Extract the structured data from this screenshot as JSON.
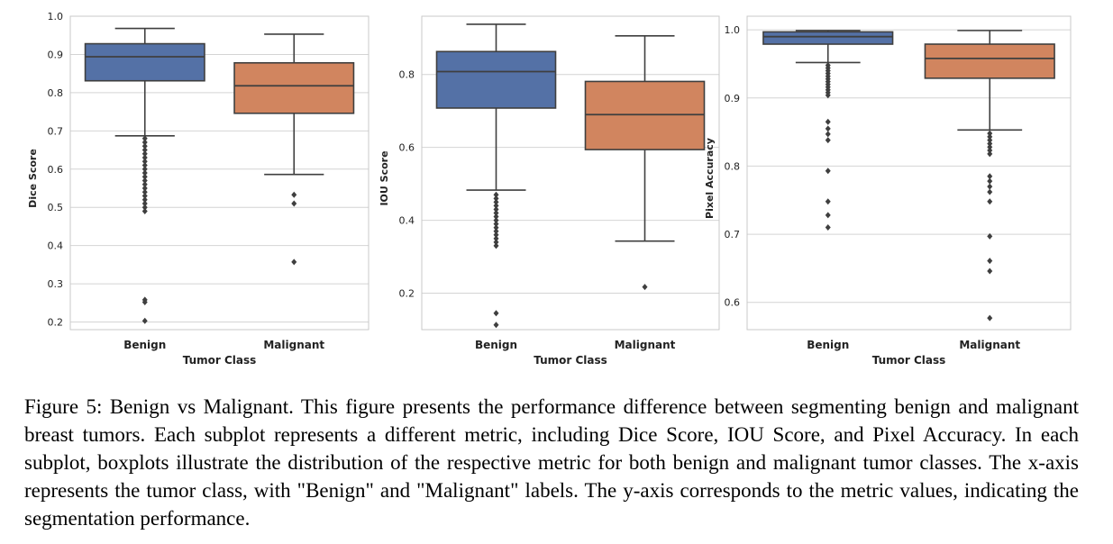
{
  "chart_data": [
    {
      "type": "box",
      "xlabel": "Tumor Class",
      "ylabel": "Dice Score",
      "ylim": [
        0.18,
        1.0
      ],
      "yticks": [
        0.2,
        0.3,
        0.4,
        0.5,
        0.6,
        0.7,
        0.8,
        0.9,
        1.0
      ],
      "yticklabels": [
        "0.2",
        "0.3",
        "0.4",
        "0.5",
        "0.6",
        "0.7",
        "0.8",
        "0.9",
        "1.0"
      ],
      "grid": true,
      "categories": [
        "Benign",
        "Malignant"
      ],
      "colors": [
        "#5471a6",
        "#d1855f"
      ],
      "boxes": [
        {
          "whisker_low": 0.687,
          "q1": 0.831,
          "median": 0.894,
          "q3": 0.928,
          "whisker_high": 0.968,
          "outliers": [
            0.68,
            0.67,
            0.66,
            0.65,
            0.64,
            0.63,
            0.62,
            0.61,
            0.6,
            0.59,
            0.58,
            0.57,
            0.56,
            0.55,
            0.54,
            0.53,
            0.52,
            0.51,
            0.5,
            0.49,
            0.258,
            0.252,
            0.203
          ]
        },
        {
          "whisker_low": 0.586,
          "q1": 0.746,
          "median": 0.818,
          "q3": 0.878,
          "whisker_high": 0.953,
          "outliers": [
            0.533,
            0.51,
            0.357
          ]
        }
      ]
    },
    {
      "type": "box",
      "xlabel": "Tumor Class",
      "ylabel": "IOU Score",
      "ylim": [
        0.1,
        0.96
      ],
      "yticks": [
        0.2,
        0.4,
        0.6,
        0.8
      ],
      "yticklabels": [
        "0.2",
        "0.4",
        "0.6",
        "0.8"
      ],
      "grid": true,
      "categories": [
        "Benign",
        "Malignant"
      ],
      "colors": [
        "#5471a6",
        "#d1855f"
      ],
      "boxes": [
        {
          "whisker_low": 0.483,
          "q1": 0.708,
          "median": 0.808,
          "q3": 0.863,
          "whisker_high": 0.938,
          "outliers": [
            0.47,
            0.46,
            0.45,
            0.44,
            0.43,
            0.42,
            0.41,
            0.4,
            0.39,
            0.38,
            0.37,
            0.36,
            0.35,
            0.34,
            0.33,
            0.145,
            0.113
          ]
        },
        {
          "whisker_low": 0.343,
          "q1": 0.594,
          "median": 0.69,
          "q3": 0.781,
          "whisker_high": 0.906,
          "outliers": [
            0.217
          ]
        }
      ]
    },
    {
      "type": "box",
      "xlabel": "Tumor Class",
      "ylabel": "Pixel Accuracy",
      "ylim": [
        0.56,
        1.02
      ],
      "yticks": [
        0.6,
        0.7,
        0.8,
        0.9,
        1.0
      ],
      "yticklabels": [
        "0.6",
        "0.7",
        "0.8",
        "0.9",
        "1.0"
      ],
      "grid": true,
      "categories": [
        "Benign",
        "Malignant"
      ],
      "colors": [
        "#5471a6",
        "#d1855f"
      ],
      "boxes": [
        {
          "whisker_low": 0.952,
          "q1": 0.979,
          "median": 0.99,
          "q3": 0.997,
          "whisker_high": 0.999,
          "outliers": [
            0.948,
            0.944,
            0.94,
            0.936,
            0.932,
            0.928,
            0.924,
            0.92,
            0.916,
            0.912,
            0.908,
            0.904,
            0.865,
            0.855,
            0.847,
            0.838,
            0.793,
            0.748,
            0.728,
            0.71
          ]
        },
        {
          "whisker_low": 0.853,
          "q1": 0.929,
          "median": 0.958,
          "q3": 0.979,
          "whisker_high": 0.999,
          "outliers": [
            0.848,
            0.843,
            0.838,
            0.833,
            0.828,
            0.823,
            0.818,
            0.785,
            0.778,
            0.77,
            0.762,
            0.748,
            0.697,
            0.661,
            0.646,
            0.577
          ]
        }
      ]
    }
  ],
  "caption": "Figure 5: Benign vs Malignant. This figure presents the performance difference between segmenting benign and malignant breast tumors. Each subplot represents a different metric, including Dice Score, IOU Score, and Pixel Accuracy. In each subplot, boxplots illustrate the distribution of the respective metric for both benign and malignant tumor classes. The x-axis represents the tumor class, with \"Benign\" and \"Malignant\" labels. The y-axis corresponds to the metric values, indicating the segmentation performance."
}
